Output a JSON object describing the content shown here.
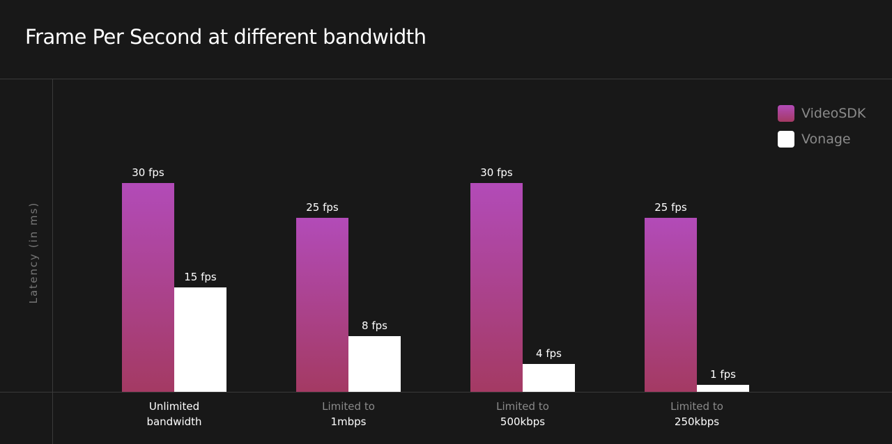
{
  "title": "Frame Per Second at different bandwidth",
  "colors": {
    "videosdk_top": "#b24bb8",
    "videosdk_bottom": "#a43a63",
    "vonage": "#ffffff",
    "background": "#181818"
  },
  "legend": [
    {
      "label": "VideoSDK",
      "color": "#b2449a"
    },
    {
      "label": "Vonage",
      "color": "#ffffff"
    }
  ],
  "chart_data": {
    "type": "bar",
    "title": "Frame Per Second at different bandwidth",
    "ylabel": "Latency (in ms)",
    "xlabel": "",
    "ylim": [
      0,
      30
    ],
    "grid": false,
    "legend_position": "top-right",
    "categories": [
      {
        "line1": "Unlimited",
        "line2": "bandwidth"
      },
      {
        "line1": "Limited to",
        "line2": "1mbps"
      },
      {
        "line1": "Limited to",
        "line2": "500kbps"
      },
      {
        "line1": "Limited to",
        "line2": "250kbps"
      }
    ],
    "series": [
      {
        "name": "VideoSDK",
        "values": [
          30,
          25,
          30,
          25
        ],
        "labels": [
          "30 fps",
          "25 fps",
          "30 fps",
          "25 fps"
        ]
      },
      {
        "name": "Vonage",
        "values": [
          15,
          8,
          4,
          1
        ],
        "labels": [
          "15 fps",
          "8 fps",
          "4 fps",
          "1 fps"
        ]
      }
    ]
  }
}
